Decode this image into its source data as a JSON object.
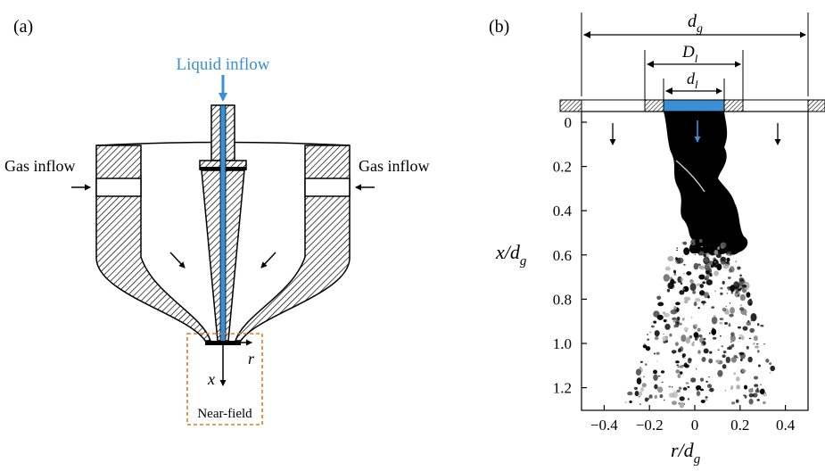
{
  "panel_a": {
    "label": "(a)",
    "liquid_inflow": "Liquid inflow",
    "gas_inflow_left": "Gas inflow",
    "gas_inflow_right": "Gas inflow",
    "axis_x": "x",
    "axis_r": "r",
    "near_field": "Near-field"
  },
  "panel_b": {
    "label": "(b)",
    "dim_dg": "d",
    "dim_dg_sub": "g",
    "dim_Dl": "D",
    "dim_Dl_sub": "l",
    "dim_dl": "d",
    "dim_dl_sub": "l",
    "ylabel_main": "x/d",
    "ylabel_sub": "g",
    "xlabel_main": "r/d",
    "xlabel_sub": "g",
    "x_ticks": [
      "−0.4",
      "−0.2",
      "0",
      "0.2",
      "0.4"
    ],
    "y_ticks": [
      "0",
      "0.2",
      "0.4",
      "0.6",
      "0.8",
      "1.0",
      "1.2"
    ]
  },
  "colors": {
    "liquid": "#3b8fd4",
    "near_field_box": "#e07c1f",
    "hatch": "#000000"
  }
}
